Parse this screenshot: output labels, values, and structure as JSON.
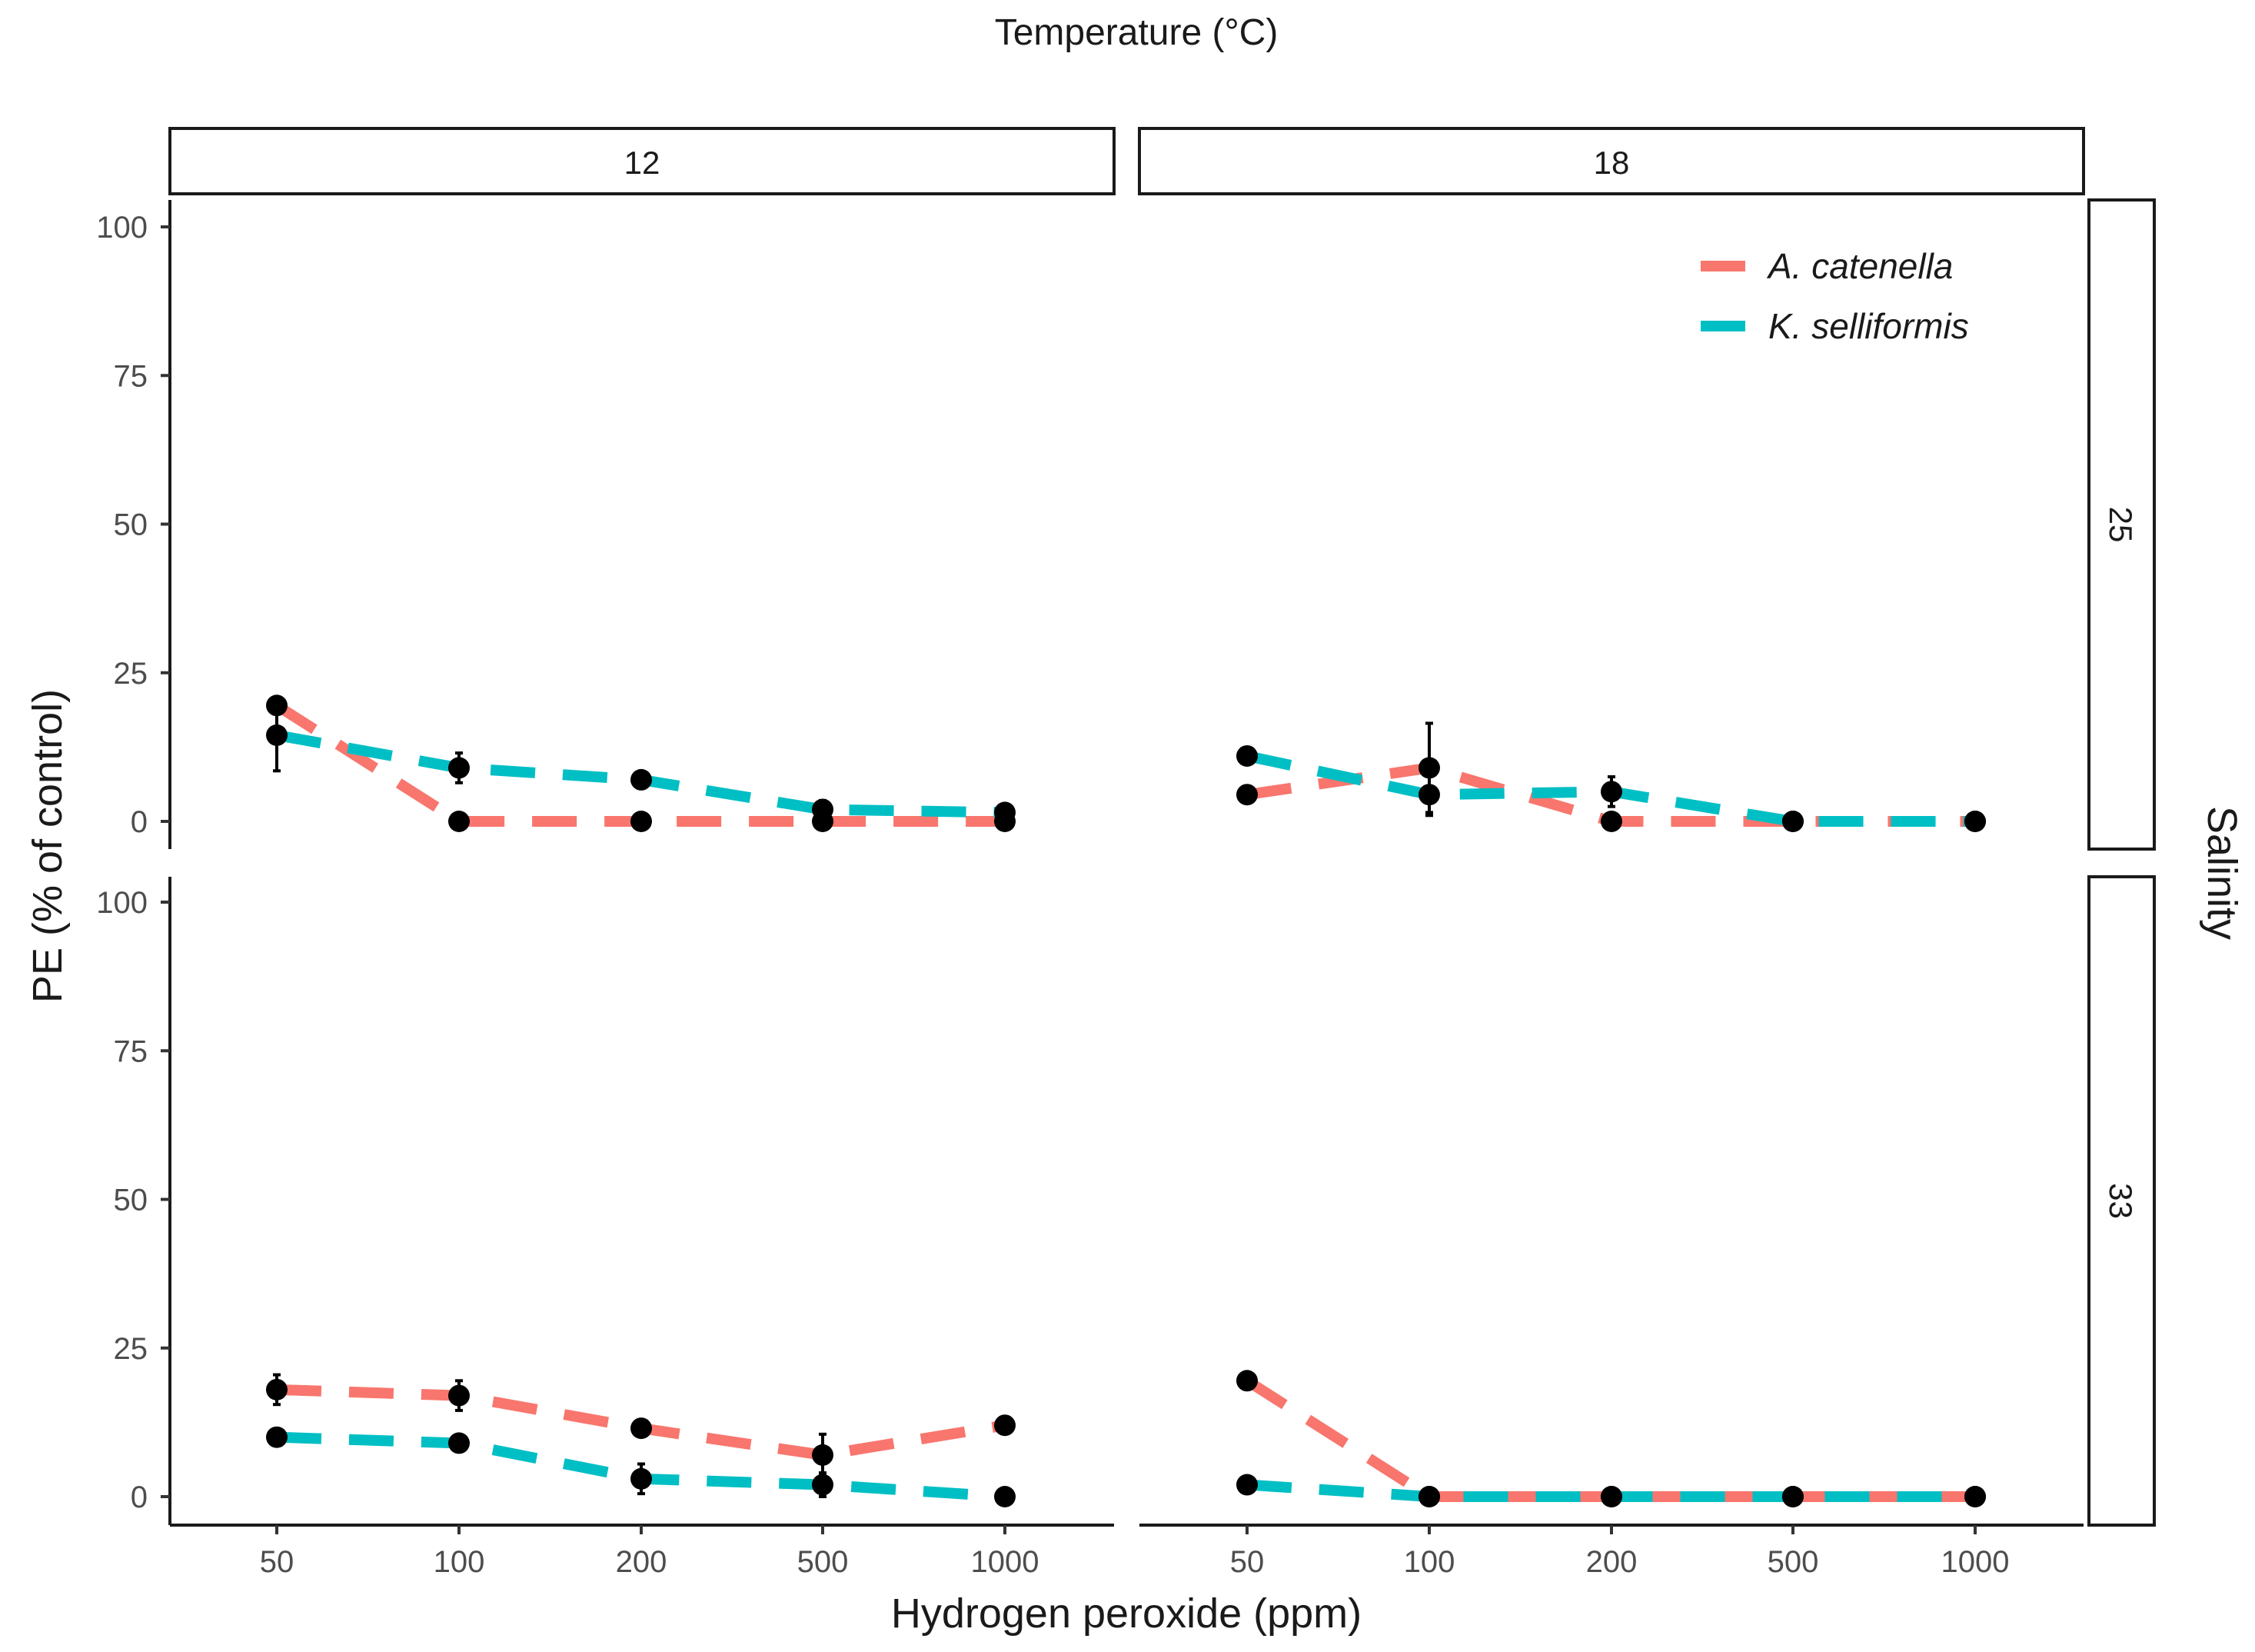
{
  "chart_data": {
    "type": "line",
    "top_title": "Temperature (°C)",
    "right_title": "Salinity",
    "xlabel": "Hydrogen peroxide (ppm)",
    "ylabel": "PE (% of control)",
    "x_categories": [
      "50",
      "100",
      "200",
      "500",
      "1000"
    ],
    "y_ticks": [
      0,
      25,
      50,
      75,
      100
    ],
    "ylim": [
      -5,
      105
    ],
    "column_facets": [
      "12",
      "18"
    ],
    "row_facets": [
      "25",
      "33"
    ],
    "legend": {
      "placement": "top-right",
      "entries": [
        {
          "name": "A. catenella",
          "color": "#F8766D"
        },
        {
          "name": "K. selliformis",
          "color": "#00BFC4"
        }
      ]
    },
    "line_style": "dashed",
    "panels": [
      {
        "temperature": "12",
        "salinity": "25",
        "series": [
          {
            "name": "A. catenella",
            "values": [
              19.5,
              0,
              0,
              0,
              0
            ],
            "error": [
              1.0,
              0,
              0,
              0,
              0
            ]
          },
          {
            "name": "K. selliformis",
            "values": [
              14.5,
              9,
              7,
              2,
              1.5
            ],
            "error": [
              6,
              2.5,
              1,
              1.5,
              1
            ]
          }
        ]
      },
      {
        "temperature": "18",
        "salinity": "25",
        "series": [
          {
            "name": "A. catenella",
            "values": [
              4.5,
              9,
              0,
              0,
              0
            ],
            "error": [
              0.5,
              7.5,
              0,
              0,
              0
            ]
          },
          {
            "name": "K. selliformis",
            "values": [
              11,
              4.5,
              5,
              0,
              0
            ],
            "error": [
              0.5,
              3.5,
              2.5,
              0,
              0
            ]
          }
        ]
      },
      {
        "temperature": "12",
        "salinity": "33",
        "series": [
          {
            "name": "A. catenella",
            "values": [
              18,
              17,
              11.5,
              7,
              12
            ],
            "error": [
              2.5,
              2.5,
              0.5,
              3.5,
              0.5
            ]
          },
          {
            "name": "K. selliformis",
            "values": [
              10,
              9,
              3,
              2,
              0
            ],
            "error": [
              0.5,
              0.5,
              2.5,
              2,
              0
            ]
          }
        ]
      },
      {
        "temperature": "18",
        "salinity": "33",
        "series": [
          {
            "name": "A. catenella",
            "values": [
              19.5,
              0,
              0,
              0,
              0
            ],
            "error": [
              0.5,
              0,
              0,
              0,
              0
            ]
          },
          {
            "name": "K. selliformis",
            "values": [
              2,
              0,
              0,
              0,
              0
            ],
            "error": [
              0.5,
              0,
              0,
              0,
              0
            ]
          }
        ]
      }
    ]
  }
}
